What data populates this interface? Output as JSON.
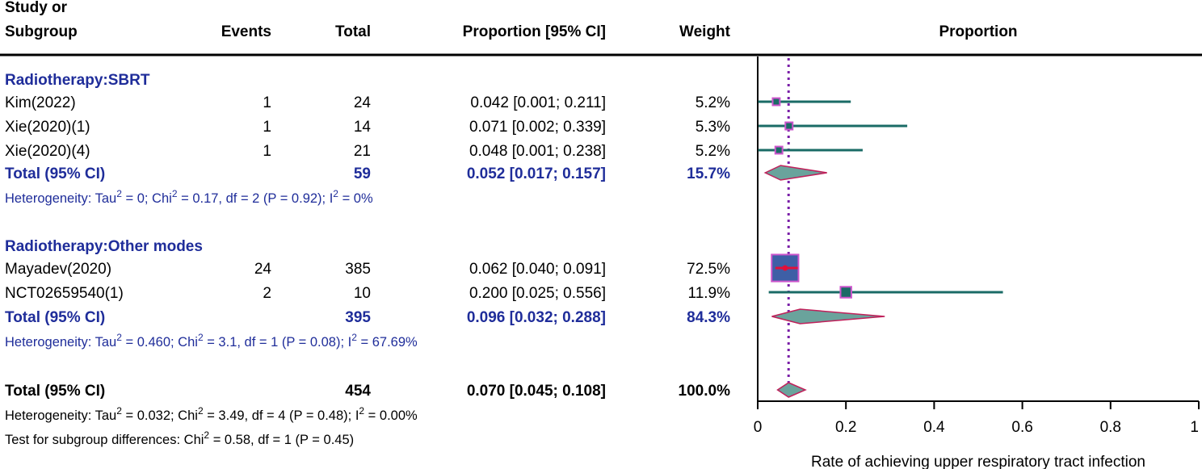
{
  "chart_data": {
    "type": "forest",
    "headers": {
      "study_line1": "Study or",
      "study_line2": "Subgroup",
      "events": "Events",
      "total": "Total",
      "proportion_ci": "Proportion [95% CI]",
      "weight": "Weight",
      "plot": "Proportion"
    },
    "subgroups": [
      {
        "name": "Radiotherapy:SBRT",
        "studies": [
          {
            "study": "Kim(2022)",
            "events": "1",
            "total": "24",
            "ci_text": "0.042 [0.001; 0.211]",
            "weight": "5.2%",
            "est": 0.042,
            "lo": 0.001,
            "hi": 0.211,
            "w": 5.2
          },
          {
            "study": "Xie(2020)(1)",
            "events": "1",
            "total": "14",
            "ci_text": "0.071 [0.002; 0.339]",
            "weight": "5.3%",
            "est": 0.071,
            "lo": 0.002,
            "hi": 0.339,
            "w": 5.3
          },
          {
            "study": "Xie(2020)(4)",
            "events": "1",
            "total": "21",
            "ci_text": "0.048 [0.001; 0.238]",
            "weight": "5.2%",
            "est": 0.048,
            "lo": 0.001,
            "hi": 0.238,
            "w": 5.2
          }
        ],
        "total": {
          "label": "Total (95% CI)",
          "total": "59",
          "ci_text": "0.052 [0.017; 0.157]",
          "weight": "15.7%",
          "est": 0.052,
          "lo": 0.017,
          "hi": 0.157
        },
        "het": {
          "prefix": "Heterogeneity: Tau",
          "mid1": " = 0; Chi",
          "mid2": " = 0.17, df = 2 (P = 0.92); I",
          "end": " = 0%"
        }
      },
      {
        "name": "Radiotherapy:Other modes",
        "studies": [
          {
            "study": "Mayadev(2020)",
            "events": "24",
            "total": "385",
            "ci_text": "0.062 [0.040; 0.091]",
            "weight": "72.5%",
            "est": 0.062,
            "lo": 0.04,
            "hi": 0.091,
            "w": 72.5
          },
          {
            "study": "NCT02659540(1)",
            "events": "2",
            "total": "10",
            "ci_text": "0.200 [0.025; 0.556]",
            "weight": "11.9%",
            "est": 0.2,
            "lo": 0.025,
            "hi": 0.556,
            "w": 11.9
          }
        ],
        "total": {
          "label": "Total (95% CI)",
          "total": "395",
          "ci_text": "0.096 [0.032; 0.288]",
          "weight": "84.3%",
          "est": 0.096,
          "lo": 0.032,
          "hi": 0.288
        },
        "het": {
          "prefix": "Heterogeneity: Tau",
          "mid1": " = 0.460; Chi",
          "mid2": " = 3.1, df = 1 (P = 0.08); I",
          "end": " = 67.69%"
        }
      }
    ],
    "overall": {
      "label": "Total (95% CI)",
      "total": "454",
      "ci_text": "0.070 [0.045; 0.108]",
      "weight": "100.0%",
      "est": 0.07,
      "lo": 0.045,
      "hi": 0.108
    },
    "overall_het": {
      "prefix": "Heterogeneity: Tau",
      "mid1": " = 0.032; Chi",
      "mid2": " = 3.49, df = 4 (P = 0.48); I",
      "end": " = 0.00%"
    },
    "subgroup_test": "Test for subgroup differences: Chi",
    "subgroup_test_end": " = 0.58, df = 1 (P = 0.45)",
    "sup": "2",
    "xaxis": {
      "ticks": [
        0,
        0.2,
        0.4,
        0.6,
        0.8,
        1
      ],
      "tick_labels": [
        "0",
        "0.2",
        "0.4",
        "0.6",
        "0.8",
        "1"
      ],
      "xlim": [
        0,
        1
      ]
    },
    "xlabel": "Rate of achieving upper respiratory tract infection",
    "pooled_line": 0.07,
    "colors": {
      "text_blue": "#1f2d9a",
      "ci_line": "#1a6b66",
      "box_fill": "#3e5fa6",
      "box_edge": "#cc55cc",
      "diamond_fill": "#6aa39c",
      "diamond_edge": "#c0205a",
      "ref_line": "#7a1fa8",
      "est_dot": "#e0103a"
    }
  }
}
